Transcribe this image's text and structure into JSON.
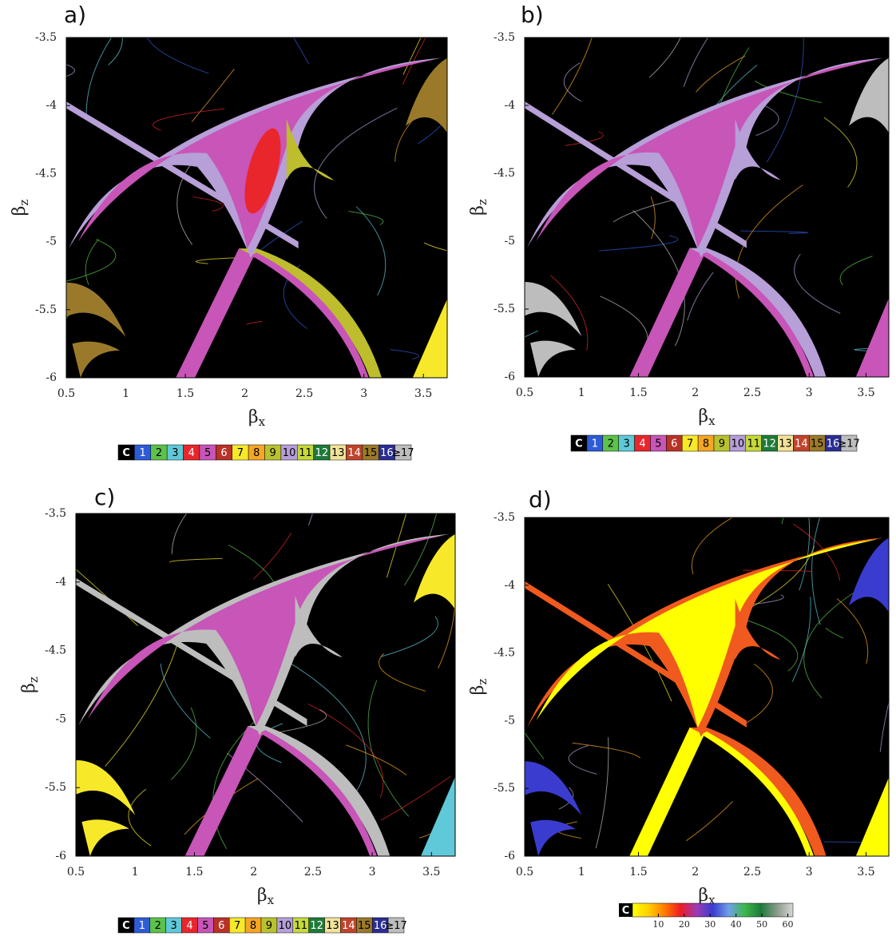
{
  "chart_data": [
    {
      "type": "heatmap",
      "panel_label": "a)",
      "xlabel": {
        "text": "β",
        "subscript": "x"
      },
      "ylabel": {
        "text": "β",
        "subscript": "z"
      },
      "xlim": [
        0.5,
        3.7
      ],
      "ylim": [
        -6,
        -3.5
      ],
      "xticks": [
        0.5,
        1,
        1.5,
        2,
        2.5,
        3,
        3.5
      ],
      "yticks": [
        -3.5,
        -4,
        -4.5,
        -5,
        -5.5,
        -6
      ],
      "colorbar": {
        "categories": [
          "C",
          "1",
          "2",
          "3",
          "4",
          "5",
          "6",
          "7",
          "8",
          "9",
          "10",
          "11",
          "12",
          "13",
          "14",
          "15",
          "16",
          "≥17"
        ],
        "colors": [
          "#000000",
          "#2e5bd6",
          "#5cc24a",
          "#5fc9d9",
          "#e8262b",
          "#c855b8",
          "#b83227",
          "#f7e92a",
          "#f5a623",
          "#b8c22e",
          "#b79fd8",
          "#c6d93a",
          "#1f7a3a",
          "#f2e39a",
          "#c0432c",
          "#9a7a2a",
          "#2b2e8f",
          "#bdbdbd"
        ]
      }
    },
    {
      "type": "heatmap",
      "panel_label": "b)",
      "xlabel": {
        "text": "β",
        "subscript": "x"
      },
      "ylabel": {
        "text": "β",
        "subscript": "z"
      },
      "xlim": [
        0.5,
        3.7
      ],
      "ylim": [
        -6,
        -3.5
      ],
      "xticks": [
        0.5,
        1,
        1.5,
        2,
        2.5,
        3,
        3.5
      ],
      "yticks": [
        -3.5,
        -4,
        -4.5,
        -5,
        -5.5,
        -6
      ],
      "colorbar": {
        "categories": [
          "C",
          "1",
          "2",
          "3",
          "4",
          "5",
          "6",
          "7",
          "8",
          "9",
          "10",
          "11",
          "12",
          "13",
          "14",
          "15",
          "16",
          "≥17"
        ],
        "colors": [
          "#000000",
          "#2e5bd6",
          "#5cc24a",
          "#5fc9d9",
          "#e8262b",
          "#c855b8",
          "#b83227",
          "#f7e92a",
          "#f5a623",
          "#b8c22e",
          "#b79fd8",
          "#c6d93a",
          "#1f7a3a",
          "#f2e39a",
          "#c0432c",
          "#9a7a2a",
          "#2b2e8f",
          "#bdbdbd"
        ]
      }
    },
    {
      "type": "heatmap",
      "panel_label": "c)",
      "xlabel": {
        "text": "β",
        "subscript": "x"
      },
      "ylabel": {
        "text": "β",
        "subscript": "z"
      },
      "xlim": [
        0.5,
        3.7
      ],
      "ylim": [
        -6,
        -3.5
      ],
      "xticks": [
        0.5,
        1,
        1.5,
        2,
        2.5,
        3,
        3.5
      ],
      "yticks": [
        -3.5,
        -4,
        -4.5,
        -5,
        -5.5,
        -6
      ],
      "colorbar": {
        "categories": [
          "C",
          "1",
          "2",
          "3",
          "4",
          "5",
          "6",
          "7",
          "8",
          "9",
          "10",
          "11",
          "12",
          "13",
          "14",
          "15",
          "16",
          "≥17"
        ],
        "colors": [
          "#000000",
          "#2e5bd6",
          "#5cc24a",
          "#5fc9d9",
          "#e8262b",
          "#c855b8",
          "#b83227",
          "#f7e92a",
          "#f5a623",
          "#b8c22e",
          "#b79fd8",
          "#c6d93a",
          "#1f7a3a",
          "#f2e39a",
          "#c0432c",
          "#9a7a2a",
          "#2b2e8f",
          "#bdbdbd"
        ]
      }
    },
    {
      "type": "heatmap",
      "panel_label": "d)",
      "xlabel": {
        "text": "β",
        "subscript": "x"
      },
      "ylabel": {
        "text": "β",
        "subscript": "z"
      },
      "xlim": [
        0.5,
        3.7
      ],
      "ylim": [
        -6,
        -3.5
      ],
      "xticks": [
        0.5,
        1,
        1.5,
        2,
        2.5,
        3,
        3.5
      ],
      "yticks": [
        -3.5,
        -4,
        -4.5,
        -5,
        -5.5,
        -6
      ],
      "colorbar": {
        "label": "C",
        "lim": [
          0,
          62
        ],
        "ticks": [
          10,
          20,
          30,
          40,
          50,
          60
        ],
        "colors": [
          "#ffff00",
          "#ffd000",
          "#ff7a00",
          "#ee1c25",
          "#9b3bb5",
          "#3a3ccf",
          "#6fa0e8",
          "#3cb84a",
          "#1d7a3a",
          "#8a9a8a",
          "#d8d8d8"
        ]
      }
    }
  ]
}
